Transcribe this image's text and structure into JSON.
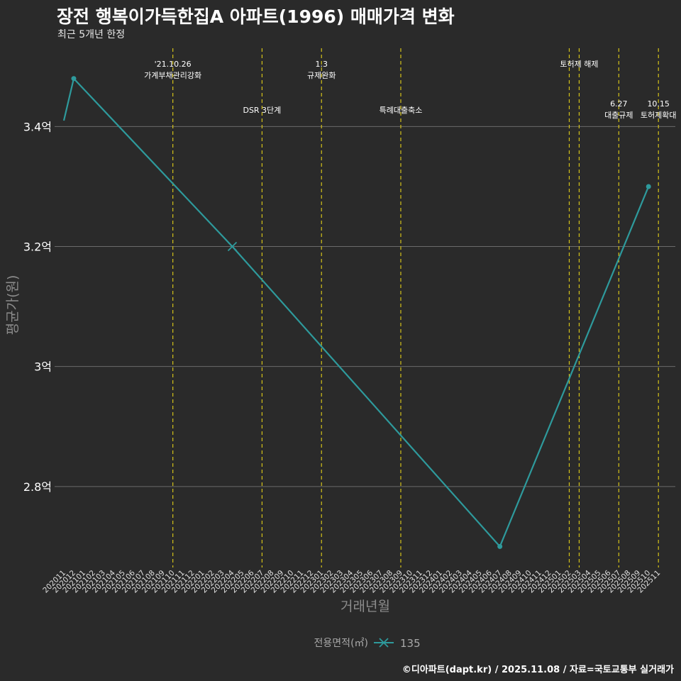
{
  "title": "장전 행복이가득한집A 아파트(1996) 매매가격 변화",
  "subtitle": "최근 5개년 한정",
  "caption": "©디아파트(dapt.kr) / 2025.11.08 / 자료=국토교통부 실거래가",
  "chart_data": {
    "type": "line",
    "xlabel": "거래년월",
    "ylabel": "평균가(원)",
    "ylim": [
      2.665,
      3.54
    ],
    "ytick_values": [
      2.8,
      3.0,
      3.2,
      3.4
    ],
    "ytick_labels": [
      "2.8억",
      "3억",
      "3.2억",
      "3.4억"
    ],
    "categories": [
      "202011",
      "202012",
      "202101",
      "202102",
      "202103",
      "202104",
      "202105",
      "202106",
      "202107",
      "202108",
      "202109",
      "202110",
      "202111",
      "202112",
      "202201",
      "202202",
      "202203",
      "202204",
      "202205",
      "202206",
      "202207",
      "202208",
      "202209",
      "202210",
      "202211",
      "202212",
      "202301",
      "202302",
      "202303",
      "202304",
      "202305",
      "202306",
      "202307",
      "202308",
      "202309",
      "202310",
      "202311",
      "202312",
      "202401",
      "202402",
      "202403",
      "202404",
      "202405",
      "202406",
      "202407",
      "202408",
      "202409",
      "202410",
      "202411",
      "202412",
      "202501",
      "202502",
      "202503",
      "202504",
      "202505",
      "202506",
      "202507",
      "202508",
      "202509",
      "202510",
      "202511"
    ],
    "series": [
      {
        "name": "135",
        "color": "#2e9a9c",
        "x": [
          "202011",
          "202012",
          "202204",
          "202407",
          "202510"
        ],
        "values": [
          3.41,
          3.48,
          3.2,
          2.7,
          3.3
        ],
        "markers": [
          "none",
          "point",
          "cross",
          "point",
          "point"
        ]
      }
    ],
    "legend": {
      "title": "전용면적(㎡)",
      "position": "bottom"
    },
    "event_line_color": "#d4c219",
    "events": [
      {
        "month": "202110",
        "lines": [
          "'21.10.26",
          "가계부채관리강화"
        ],
        "row": "top"
      },
      {
        "month": "202207",
        "lines": [
          "DSR 3단계"
        ],
        "row": "middle"
      },
      {
        "month": "202301",
        "lines": [
          "1.3",
          "규제완화"
        ],
        "row": "top"
      },
      {
        "month": "202309",
        "lines": [
          "특례대출축소"
        ],
        "row": "middle"
      },
      {
        "month": "202502",
        "lines": [],
        "row": "top"
      },
      {
        "month": "202503",
        "lines": [
          "토허제 해제"
        ],
        "row": "top"
      },
      {
        "month": "202507",
        "lines": [
          "6.27",
          "대출규제"
        ],
        "row": "lower"
      },
      {
        "month": "202511",
        "lines": [
          "10.15",
          "토허제확대"
        ],
        "row": "lower"
      }
    ]
  }
}
